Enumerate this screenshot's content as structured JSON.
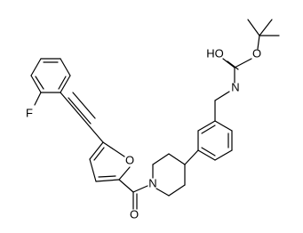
{
  "atoms": {
    "fluorine": "F",
    "furan_oxygen": "O",
    "carbonyl_oxygen": "O",
    "piperidine_nitrogen": "N",
    "hydroxyl": "HO",
    "carbamate_nitrogen": "N",
    "ester_oxygen": "O"
  }
}
